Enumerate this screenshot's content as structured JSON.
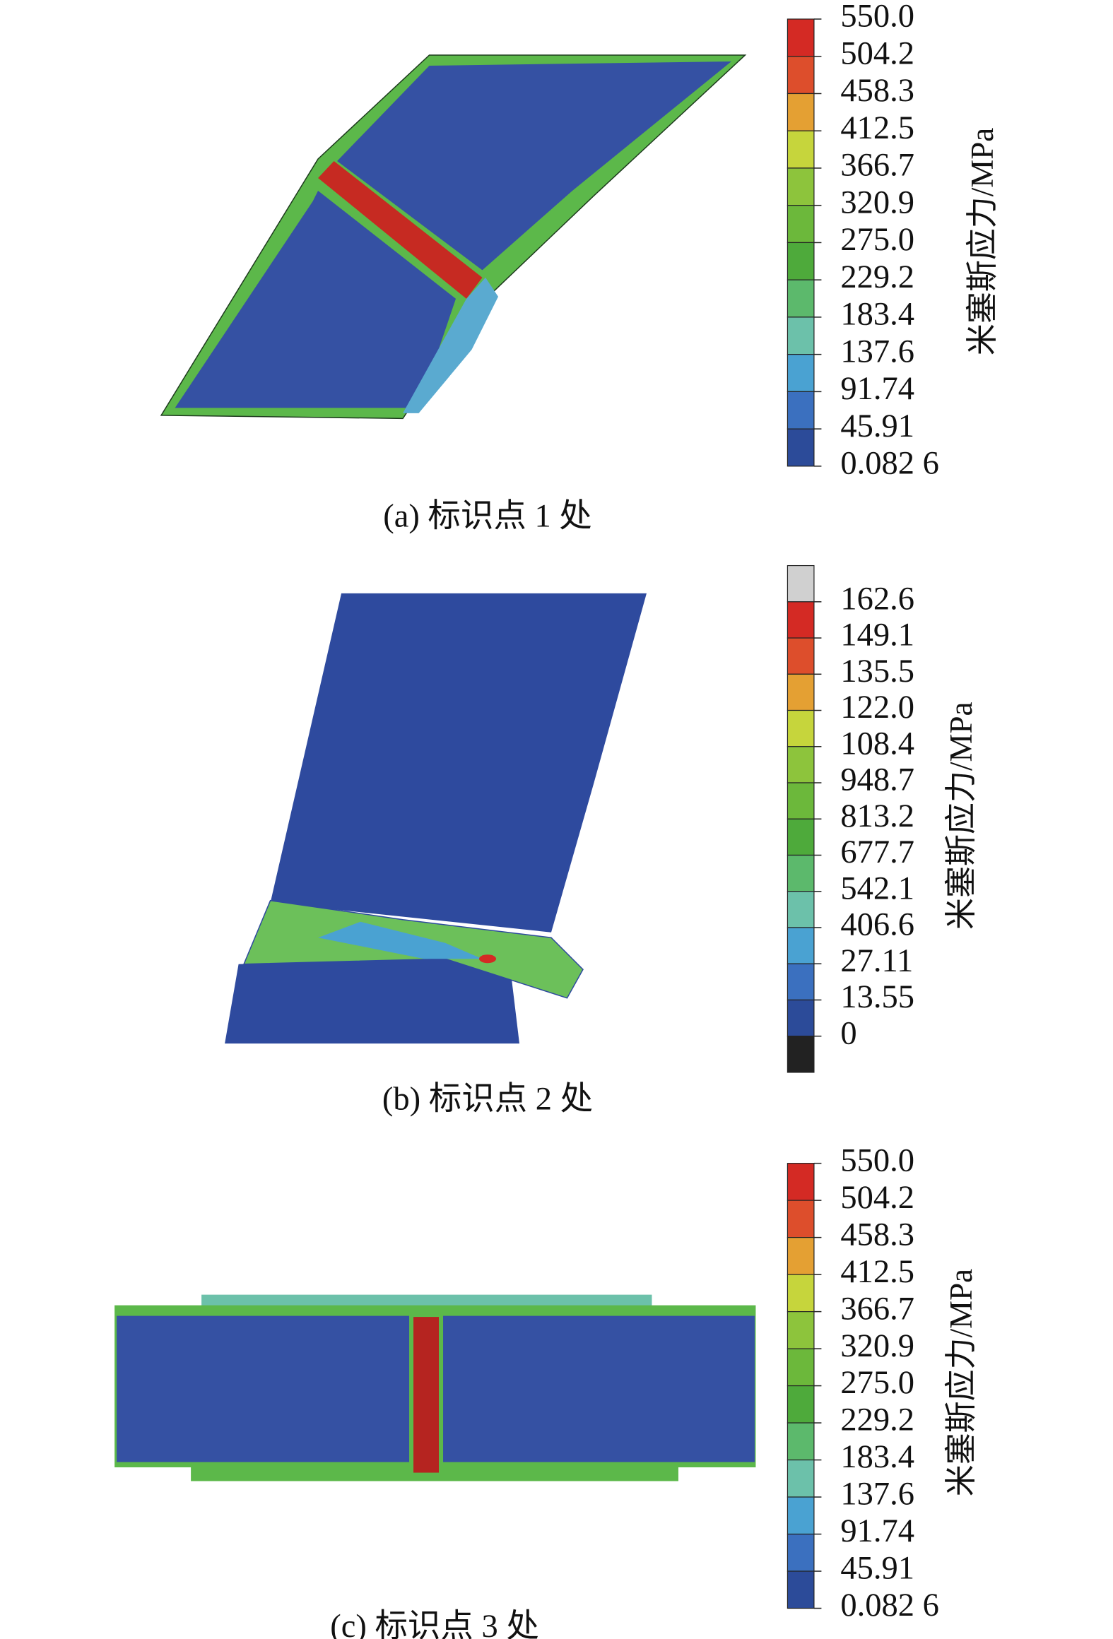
{
  "panels": [
    {
      "caption": "(a) 标识点 1 处",
      "legend": {
        "title": "米塞斯应力/MPa",
        "labels": [
          "550.0",
          "504.2",
          "458.3",
          "412.5",
          "366.7",
          "320.9",
          "275.0",
          "229.2",
          "183.4",
          "137.6",
          "91.74",
          "45.91",
          "0.082 6"
        ],
        "colors": [
          "#d42a24",
          "#dd4e2c",
          "#e4a033",
          "#c6d53c",
          "#8dc43c",
          "#6cb83b",
          "#4eaa3b",
          "#5cb96c",
          "#6cc1aa",
          "#4aa2d2",
          "#3b70bf",
          "#2c4b99"
        ]
      }
    },
    {
      "caption": "(b) 标识点 2 处",
      "legend": {
        "title": "米塞斯应力/MPa",
        "labels": [
          "162.6",
          "149.1",
          "135.5",
          "122.0",
          "108.4",
          "948.7",
          "813.2",
          "677.7",
          "542.1",
          "406.6",
          "27.11",
          "13.55",
          "0"
        ],
        "colors": [
          "#d0d0d0",
          "#d42a24",
          "#dd4e2c",
          "#e4a033",
          "#c6d53c",
          "#8dc43c",
          "#6cb83b",
          "#4eaa3b",
          "#5cb96c",
          "#6cc1aa",
          "#4aa2d2",
          "#3b70bf",
          "#2c4b99",
          "#222222"
        ]
      }
    },
    {
      "caption": "(c) 标识点 3 处",
      "legend": {
        "title": "米塞斯应力/MPa",
        "labels": [
          "550.0",
          "504.2",
          "458.3",
          "412.5",
          "366.7",
          "320.9",
          "275.0",
          "229.2",
          "183.4",
          "137.6",
          "91.74",
          "45.91",
          "0.082 6"
        ],
        "colors": [
          "#d42a24",
          "#dd4e2c",
          "#e4a033",
          "#c6d53c",
          "#8dc43c",
          "#6cb83b",
          "#4eaa3b",
          "#5cb96c",
          "#6cc1aa",
          "#4aa2d2",
          "#3b70bf",
          "#2c4b99"
        ]
      }
    }
  ]
}
